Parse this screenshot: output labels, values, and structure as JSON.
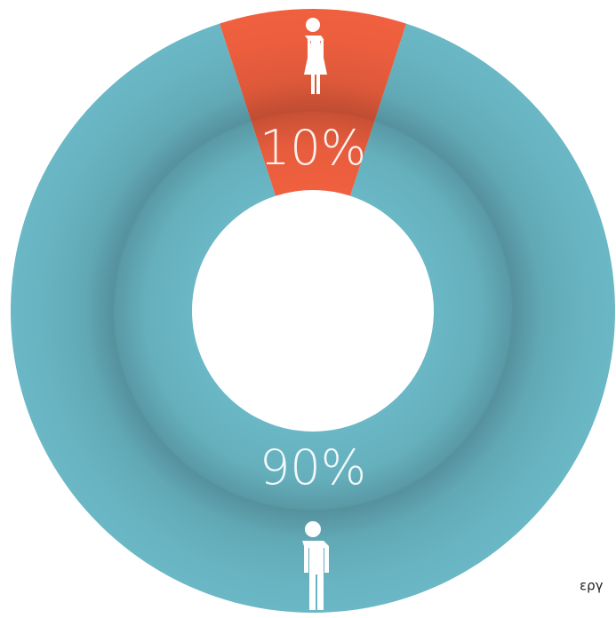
{
  "chart_data": {
    "type": "donut",
    "values": [
      10,
      90
    ],
    "value_labels": [
      "10%",
      "90%"
    ],
    "colors": [
      "#f0603f",
      "#6ab7c5"
    ],
    "annotation": "εργ"
  }
}
